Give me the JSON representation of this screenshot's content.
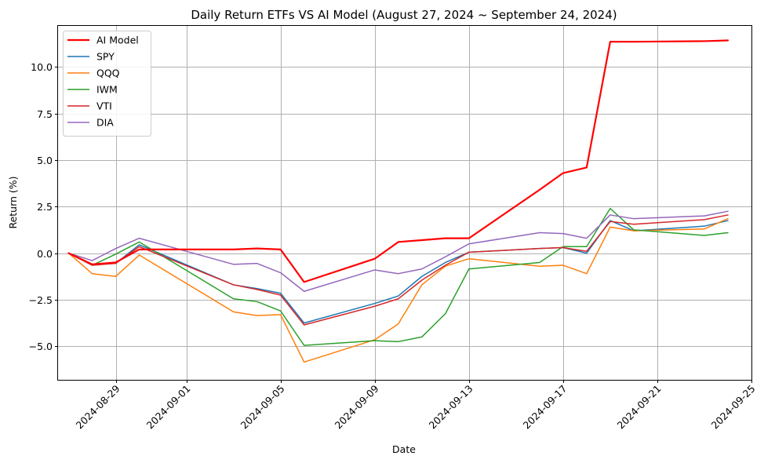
{
  "chart_data": {
    "type": "line",
    "title": "Daily Return ETFs VS AI Model (August 27, 2024 ~ September 24, 2024)",
    "xlabel": "Date",
    "ylabel": "Return (%)",
    "grid": true,
    "legend_position": "top-left",
    "x_ticks": [
      "2024-08-29",
      "2024-09-01",
      "2024-09-05",
      "2024-09-09",
      "2024-09-13",
      "2024-09-17",
      "2024-09-21",
      "2024-09-25"
    ],
    "y_ticks": [
      "−5.0",
      "−2.5",
      "0.0",
      "2.5",
      "5.0",
      "7.5",
      "10.0"
    ],
    "y_tick_values": [
      -5.0,
      -2.5,
      0.0,
      2.5,
      5.0,
      7.5,
      10.0
    ],
    "xlim": [
      "2024-08-26",
      "2024-09-25"
    ],
    "ylim": [
      -6.8,
      12.2
    ],
    "x": [
      "2024-08-27",
      "2024-08-28",
      "2024-08-29",
      "2024-08-30",
      "2024-09-03",
      "2024-09-04",
      "2024-09-05",
      "2024-09-06",
      "2024-09-09",
      "2024-09-10",
      "2024-09-11",
      "2024-09-12",
      "2024-09-13",
      "2024-09-16",
      "2024-09-17",
      "2024-09-18",
      "2024-09-19",
      "2024-09-20",
      "2024-09-23",
      "2024-09-24"
    ],
    "series": [
      {
        "name": "AI Model",
        "color": "#ff0000",
        "width": 2.2,
        "values": [
          0.0,
          -0.6,
          -0.5,
          0.2,
          0.2,
          0.25,
          0.2,
          -1.55,
          -0.3,
          0.6,
          0.7,
          0.8,
          0.8,
          3.4,
          4.3,
          4.6,
          11.35,
          11.35,
          11.38,
          11.42
        ]
      },
      {
        "name": "SPY",
        "color": "#1f77b4",
        "width": 1.5,
        "values": [
          0.0,
          -0.6,
          -0.55,
          0.45,
          -1.7,
          -1.9,
          -2.15,
          -3.75,
          -2.7,
          -2.3,
          -1.25,
          -0.5,
          0.05,
          0.25,
          0.3,
          0.0,
          1.75,
          1.2,
          1.45,
          1.75
        ]
      },
      {
        "name": "QQQ",
        "color": "#ff7f0e",
        "width": 1.5,
        "values": [
          0.0,
          -1.1,
          -1.25,
          -0.1,
          -3.15,
          -3.35,
          -3.3,
          -5.85,
          -4.65,
          -3.8,
          -1.7,
          -0.7,
          -0.3,
          -0.7,
          -0.65,
          -1.1,
          1.4,
          1.2,
          1.3,
          1.85
        ]
      },
      {
        "name": "IWM",
        "color": "#2ca02c",
        "width": 1.5,
        "values": [
          0.0,
          -0.65,
          -0.05,
          0.6,
          -2.45,
          -2.6,
          -3.1,
          -4.95,
          -4.7,
          -4.75,
          -4.5,
          -3.25,
          -0.85,
          -0.5,
          0.35,
          0.35,
          2.4,
          1.25,
          0.95,
          1.1
        ]
      },
      {
        "name": "VTI",
        "color": "#d62728",
        "width": 1.5,
        "values": [
          0.0,
          -0.65,
          -0.55,
          0.35,
          -1.7,
          -1.95,
          -2.25,
          -3.85,
          -2.85,
          -2.45,
          -1.45,
          -0.65,
          0.05,
          0.25,
          0.3,
          0.1,
          1.7,
          1.55,
          1.8,
          2.05
        ]
      },
      {
        "name": "DIA",
        "color": "#9467bd",
        "width": 1.5,
        "values": [
          0.0,
          -0.4,
          0.25,
          0.8,
          -0.6,
          -0.55,
          -1.05,
          -2.05,
          -0.9,
          -1.1,
          -0.85,
          -0.2,
          0.5,
          1.1,
          1.05,
          0.8,
          2.05,
          1.85,
          2.0,
          2.25
        ]
      }
    ]
  }
}
